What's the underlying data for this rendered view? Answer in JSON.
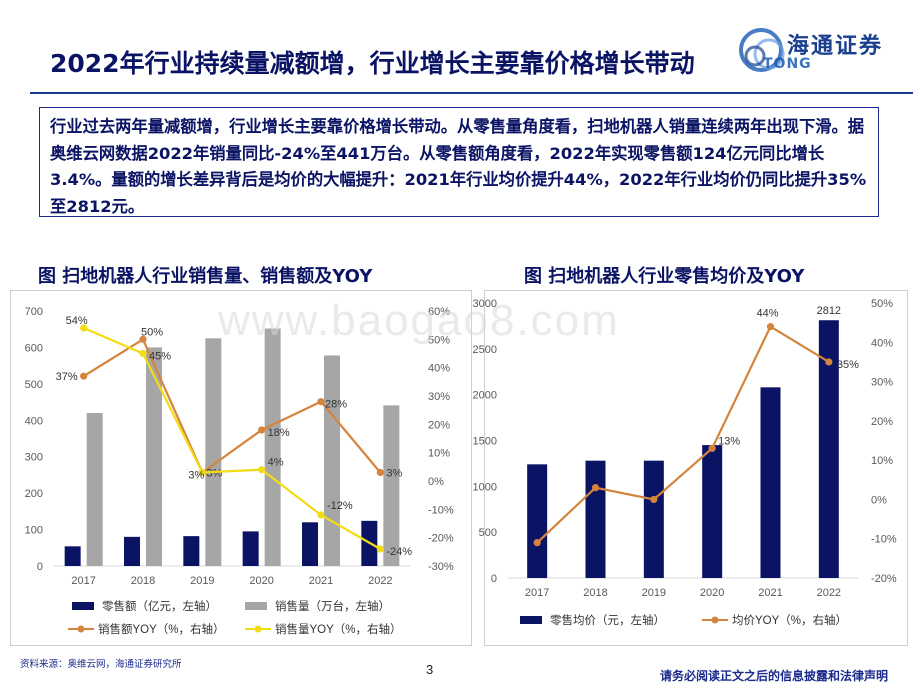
{
  "header": {
    "title": "2022年行业持续量减额增，行业增长主要靠价格增长带动",
    "logo_text": "海通证券",
    "logo_sub": "TONG"
  },
  "summary": "行业过去两年量减额增，行业增长主要靠价格增长带动。从零售量角度看，扫地机器人销量连续两年出现下滑。据奥维云网数据2022年销量同比-24%至441万台。从零售额角度看，2022年实现零售额124亿元同比增长3.4%。量额的增长差异背后是均价的大幅提升：2021年行业均价提升44%，2022年行业均价仍同比提升35%至2812元。",
  "watermark": "www.baogao8.com",
  "footer": {
    "source": "资料来源：奥维云网，海通证券研究所",
    "page": "3",
    "disclaimer": "请务必阅读正文之后的信息披露和法律声明"
  },
  "colors": {
    "navy": "#0b1464",
    "gray": "#a6a6a6",
    "orange": "#d4843c",
    "yellow": "#f2dc14"
  },
  "chart_data": [
    {
      "type": "bar",
      "title": "图 扫地机器人行业销售量、销售额及YOY",
      "categories": [
        "2017",
        "2018",
        "2019",
        "2020",
        "2021",
        "2022"
      ],
      "ylim": [
        0,
        700
      ],
      "ylim_right": [
        -30,
        60
      ],
      "y_ticks": [
        "0",
        "100",
        "200",
        "300",
        "400",
        "500",
        "600",
        "700"
      ],
      "y_ticks_right": [
        "-30%",
        "-20%",
        "-10%",
        "0%",
        "10%",
        "20%",
        "30%",
        "40%",
        "50%",
        "60%"
      ],
      "series": [
        {
          "name": "零售额（亿元，左轴）",
          "type": "bar",
          "axis": "left",
          "values": [
            54,
            80,
            82,
            95,
            120,
            124
          ]
        },
        {
          "name": "销售量（万台，左轴）",
          "type": "bar",
          "axis": "left",
          "values": [
            420,
            600,
            625,
            652,
            578,
            441
          ]
        },
        {
          "name": "销售额YOY（%，右轴）",
          "type": "line",
          "axis": "right",
          "values": [
            37,
            50,
            3,
            18,
            28,
            3
          ],
          "labels": [
            "37%",
            "50%",
            "3%",
            "18%",
            "28%",
            "3%"
          ]
        },
        {
          "name": "销售量YOY（%，右轴）",
          "type": "line",
          "axis": "right",
          "values": [
            54,
            45,
            3,
            4,
            -12,
            -24
          ],
          "labels": [
            "54%",
            "45%",
            "3%",
            "4%",
            "-12%",
            "-24%"
          ]
        }
      ]
    },
    {
      "type": "bar",
      "title": "图 扫地机器人行业零售均价及YOY",
      "categories": [
        "2017",
        "2018",
        "2019",
        "2020",
        "2021",
        "2022"
      ],
      "ylim": [
        0,
        3000
      ],
      "ylim_right": [
        -20,
        50
      ],
      "y_ticks": [
        "0",
        "500",
        "1000",
        "1500",
        "2000",
        "2500",
        "3000"
      ],
      "y_ticks_right": [
        "-20%",
        "-10%",
        "0%",
        "10%",
        "20%",
        "30%",
        "40%",
        "50%"
      ],
      "series": [
        {
          "name": "零售均价（元，左轴）",
          "type": "bar",
          "axis": "left",
          "values": [
            1240,
            1280,
            1280,
            1450,
            2080,
            2812
          ],
          "labels": [
            "",
            "",
            "",
            "",
            "",
            "2812"
          ]
        },
        {
          "name": "均价YOY（%，右轴）",
          "type": "line",
          "axis": "right",
          "values": [
            -11,
            3,
            0,
            13,
            44,
            35
          ],
          "labels": [
            "",
            "",
            "",
            "13%",
            "44%",
            "35%"
          ]
        }
      ]
    }
  ]
}
